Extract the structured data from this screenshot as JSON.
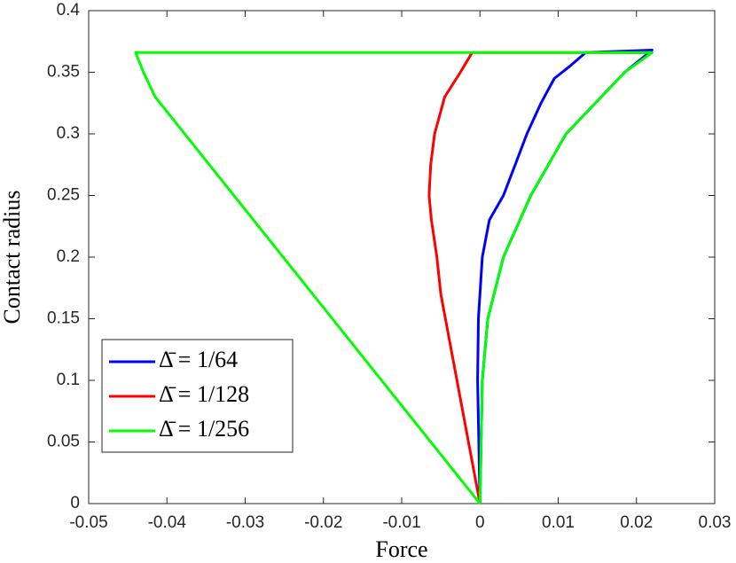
{
  "chart_data": {
    "type": "line",
    "xlabel": "Force",
    "ylabel": "Contact radius",
    "xlim": [
      -0.05,
      0.03
    ],
    "ylim": [
      0,
      0.4
    ],
    "xticks": [
      -0.05,
      -0.04,
      -0.03,
      -0.02,
      -0.01,
      0,
      0.01,
      0.02,
      0.03
    ],
    "yticks": [
      0,
      0.05,
      0.1,
      0.15,
      0.2,
      0.25,
      0.3,
      0.35,
      0.4
    ],
    "legend": "lower left",
    "series": [
      {
        "name": "Δ̄ = 1/64",
        "color": "#0000ff",
        "x": [
          0,
          -0.0003,
          -0.0002,
          0.0003,
          0.0012,
          0.003,
          0.0045,
          0.006,
          0.0078,
          0.0095,
          0.0115,
          0.0135,
          0.022,
          0.0185,
          0.011,
          0.0065,
          0.003,
          0.001,
          0.0003,
          0
        ],
        "values": [
          0,
          0.1,
          0.15,
          0.2,
          0.23,
          0.25,
          0.275,
          0.3,
          0.325,
          0.345,
          0.355,
          0.366,
          0.368,
          0.35,
          0.3,
          0.25,
          0.2,
          0.15,
          0.1,
          0
        ]
      },
      {
        "name": "Δ̄ = 1/128",
        "color": "#ff0000",
        "x": [
          0,
          -0.005,
          -0.0055,
          -0.0062,
          -0.0065,
          -0.0063,
          -0.0058,
          -0.0045,
          -0.0025,
          -0.001,
          0.022
        ],
        "values": [
          0,
          0.17,
          0.2,
          0.23,
          0.25,
          0.275,
          0.3,
          0.33,
          0.35,
          0.366,
          0.366
        ]
      },
      {
        "name": "Δ̄ = 1/256",
        "color": "#00ff00",
        "x": [
          0,
          0.0003,
          0.001,
          0.003,
          0.0065,
          0.011,
          0.0185,
          0.022,
          -0.044,
          -0.043,
          -0.0415,
          0
        ],
        "values": [
          0,
          0.1,
          0.15,
          0.2,
          0.25,
          0.3,
          0.35,
          0.366,
          0.366,
          0.35,
          0.33,
          0
        ]
      }
    ]
  }
}
